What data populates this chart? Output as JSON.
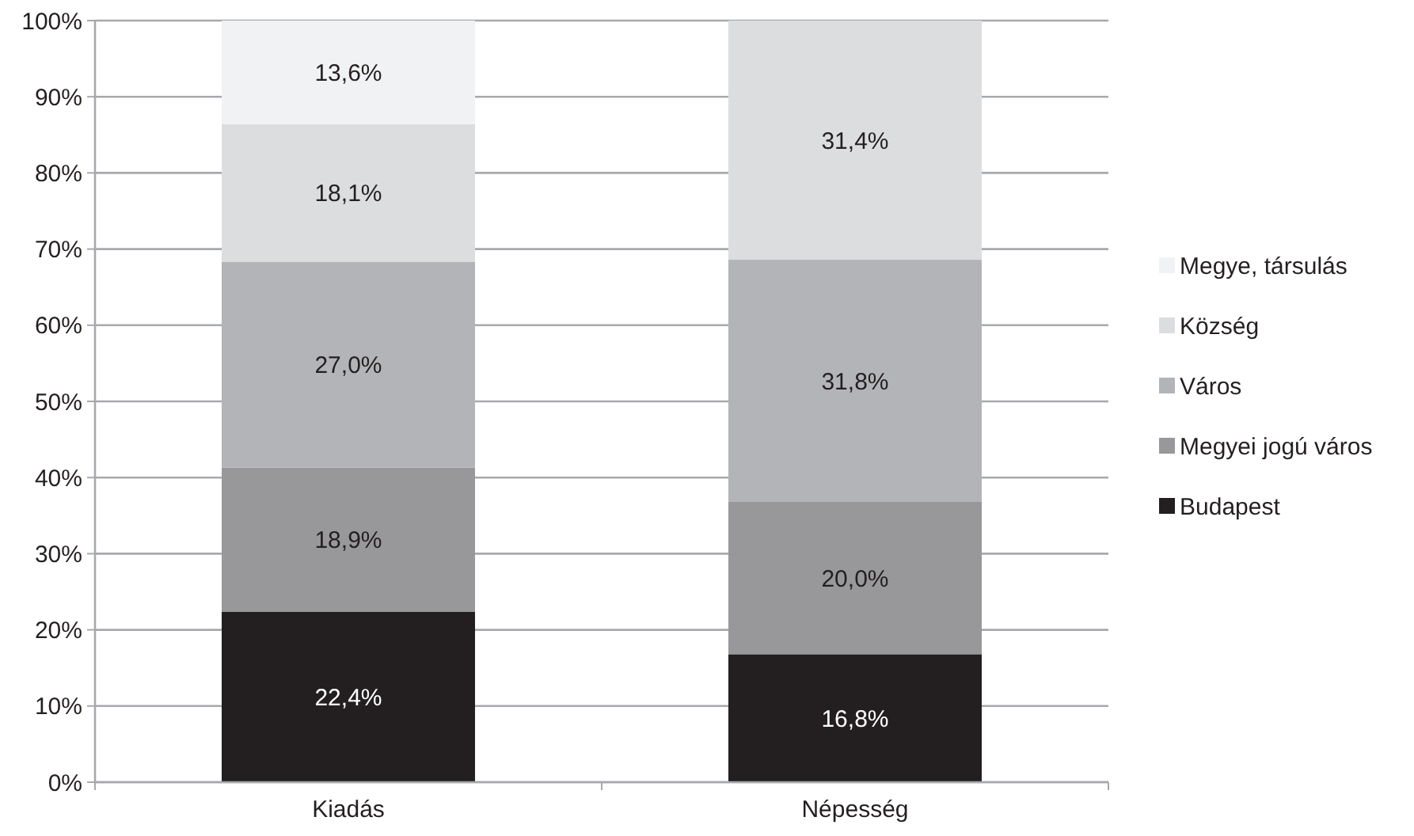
{
  "chart_data": {
    "type": "bar",
    "stacked": true,
    "categories": [
      "Kiadás",
      "Népesség"
    ],
    "series": [
      {
        "name": "Budapest",
        "color": "#231f20",
        "values": [
          22.4,
          16.8
        ],
        "value_labels": [
          "22,4%",
          "16,8%"
        ]
      },
      {
        "name": "Megyei jogú város",
        "color": "#98989b",
        "values": [
          18.9,
          20.0
        ],
        "value_labels": [
          "18,9%",
          "20,0%"
        ]
      },
      {
        "name": "Város",
        "color": "#b3b4b7",
        "values": [
          27.0,
          31.8
        ],
        "value_labels": [
          "27,0%",
          "31,8%"
        ]
      },
      {
        "name": "Község",
        "color": "#dcdddf",
        "values": [
          18.1,
          31.4
        ],
        "value_labels": [
          "18,1%",
          "31,4%"
        ]
      },
      {
        "name": "Megye, társulás",
        "color": "#f1f2f3",
        "values": [
          13.6,
          null
        ],
        "value_labels": [
          "13,6%",
          null
        ]
      }
    ],
    "ylim": [
      0,
      100
    ],
    "yticks": [
      {
        "value": 0,
        "label": "0%"
      },
      {
        "value": 10,
        "label": "10%"
      },
      {
        "value": 20,
        "label": "20%"
      },
      {
        "value": 30,
        "label": "30%"
      },
      {
        "value": 40,
        "label": "40%"
      },
      {
        "value": 50,
        "label": "50%"
      },
      {
        "value": 60,
        "label": "60%"
      },
      {
        "value": 70,
        "label": "70%"
      },
      {
        "value": 80,
        "label": "80%"
      },
      {
        "value": 90,
        "label": "90%"
      },
      {
        "value": 100,
        "label": "100%"
      }
    ],
    "grid": "y",
    "legend": "right"
  }
}
